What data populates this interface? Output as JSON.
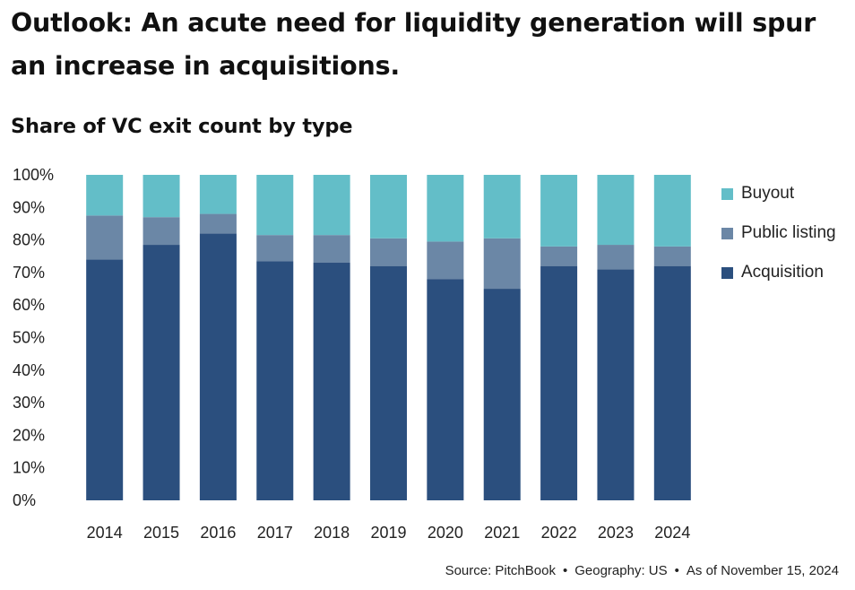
{
  "headline": "Outlook: An acute need for liquidity generation will spur an increase in acquisitions.",
  "source": {
    "parts": [
      "Source: PitchBook",
      "Geography: US",
      "As of November 15, 2024"
    ],
    "separator": "•"
  },
  "chart_data": {
    "type": "bar",
    "stacked": true,
    "title": "Share of VC exit count by type",
    "xlabel": "",
    "ylabel": "",
    "ylim": [
      0,
      100
    ],
    "yticks": [
      "0%",
      "10%",
      "20%",
      "30%",
      "40%",
      "50%",
      "60%",
      "70%",
      "80%",
      "90%",
      "100%"
    ],
    "categories": [
      "2014",
      "2015",
      "2016",
      "2017",
      "2018",
      "2019",
      "2020",
      "2021",
      "2022",
      "2023",
      "2024"
    ],
    "series": [
      {
        "name": "Acquisition",
        "color": "#2b4f7e",
        "values": [
          74,
          78.5,
          82,
          73.5,
          73,
          72,
          68,
          65,
          72,
          71,
          72
        ]
      },
      {
        "name": "Public listing",
        "color": "#6b87a6",
        "values": [
          13.5,
          8.5,
          6,
          8,
          8.5,
          8.5,
          11.5,
          15.5,
          6,
          7.5,
          6
        ]
      },
      {
        "name": "Buyout",
        "color": "#63bec8",
        "values": [
          12.5,
          13,
          12,
          18.5,
          18.5,
          19.5,
          20.5,
          19.5,
          22,
          21.5,
          22
        ]
      }
    ],
    "legend_position": "right",
    "grid": false
  }
}
